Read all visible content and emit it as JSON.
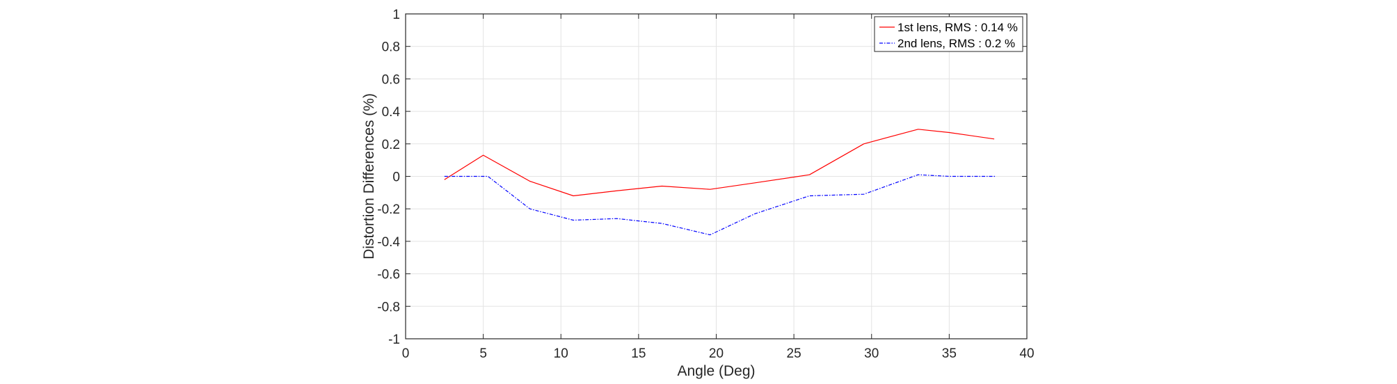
{
  "chart_data": {
    "type": "line",
    "xlabel": "Angle (Deg)",
    "ylabel": "Distortion Differences (%)",
    "xlim": [
      0,
      40
    ],
    "ylim": [
      -1,
      1
    ],
    "xticks": [
      0,
      5,
      10,
      15,
      20,
      25,
      30,
      35,
      40
    ],
    "yticks": [
      -1,
      -0.8,
      -0.6,
      -0.4,
      -0.2,
      0,
      0.2,
      0.4,
      0.6,
      0.8,
      1
    ],
    "grid": true,
    "legend_position": "top-right",
    "series": [
      {
        "name": "1st lens, RMS : 0.14 %",
        "color": "#ff0000",
        "line_style": "solid",
        "x": [
          2.5,
          5.0,
          8.0,
          10.8,
          13.5,
          16.5,
          19.6,
          22.5,
          26.0,
          29.5,
          33.0,
          35.0,
          37.9
        ],
        "y": [
          -0.02,
          0.13,
          -0.03,
          -0.12,
          -0.09,
          -0.06,
          -0.08,
          -0.04,
          0.01,
          0.2,
          0.29,
          0.27,
          0.23
        ]
      },
      {
        "name": "2nd lens, RMS : 0.2 %",
        "color": "#0000ff",
        "line_style": "dashdot",
        "x": [
          2.5,
          5.3,
          8.0,
          10.8,
          13.6,
          16.5,
          19.6,
          22.5,
          26.0,
          29.5,
          33.0,
          35.0,
          38.0
        ],
        "y": [
          0.0,
          0.0,
          -0.2,
          -0.27,
          -0.26,
          -0.29,
          -0.36,
          -0.23,
          -0.12,
          -0.11,
          0.01,
          0.0,
          0.0
        ]
      }
    ]
  }
}
